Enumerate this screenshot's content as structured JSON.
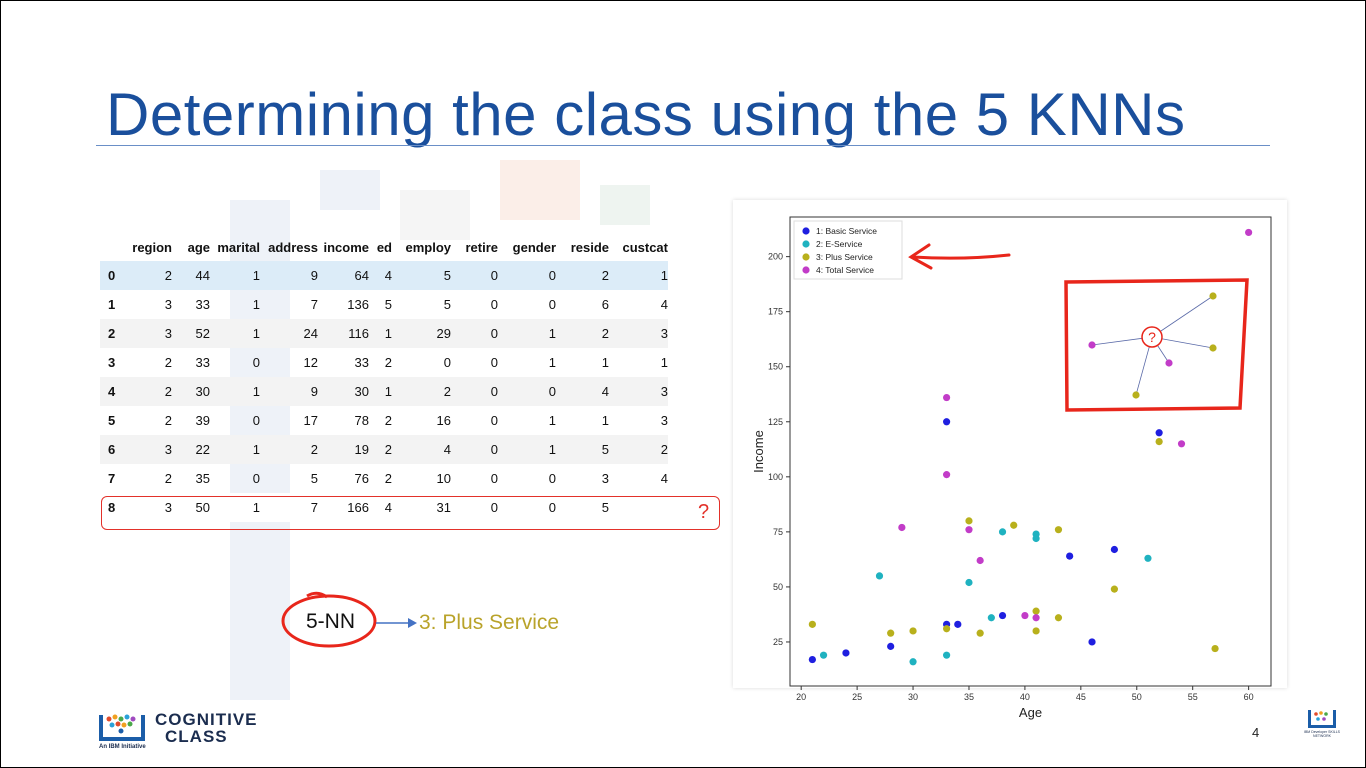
{
  "slide": {
    "title": "Determining the class using the 5 KNNs",
    "page_number": "4"
  },
  "table": {
    "headers": [
      "",
      "region",
      "age",
      "marital",
      "address",
      "income",
      "ed",
      "employ",
      "retire",
      "gender",
      "reside",
      "custcat"
    ],
    "rows": [
      [
        "0",
        "2",
        "44",
        "1",
        "9",
        "64",
        "4",
        "5",
        "0",
        "0",
        "2",
        "1"
      ],
      [
        "1",
        "3",
        "33",
        "1",
        "7",
        "136",
        "5",
        "5",
        "0",
        "0",
        "6",
        "4"
      ],
      [
        "2",
        "3",
        "52",
        "1",
        "24",
        "116",
        "1",
        "29",
        "0",
        "1",
        "2",
        "3"
      ],
      [
        "3",
        "2",
        "33",
        "0",
        "12",
        "33",
        "2",
        "0",
        "0",
        "1",
        "1",
        "1"
      ],
      [
        "4",
        "2",
        "30",
        "1",
        "9",
        "30",
        "1",
        "2",
        "0",
        "0",
        "4",
        "3"
      ],
      [
        "5",
        "2",
        "39",
        "0",
        "17",
        "78",
        "2",
        "16",
        "0",
        "1",
        "1",
        "3"
      ],
      [
        "6",
        "3",
        "22",
        "1",
        "2",
        "19",
        "2",
        "4",
        "0",
        "1",
        "5",
        "2"
      ],
      [
        "7",
        "2",
        "35",
        "0",
        "5",
        "76",
        "2",
        "10",
        "0",
        "0",
        "3",
        "4"
      ],
      [
        "8",
        "3",
        "50",
        "1",
        "7",
        "166",
        "4",
        "31",
        "0",
        "0",
        "5",
        ""
      ]
    ],
    "query_mark": "?"
  },
  "knn": {
    "label": "5-NN",
    "result": "3: Plus Service",
    "query_symbol": "?"
  },
  "logo": {
    "line1": "COGNITIVE",
    "line2": "CLASS",
    "sub": "An IBM Initiative",
    "badge_text": "IBM Developer SKILLS NETWORK"
  },
  "chart_data": {
    "type": "scatter",
    "xlabel": "Age",
    "ylabel": "Income",
    "xlim": [
      19,
      62
    ],
    "ylim": [
      5,
      218
    ],
    "xticks": [
      20,
      25,
      30,
      35,
      40,
      45,
      50,
      55,
      60
    ],
    "yticks": [
      25,
      50,
      75,
      100,
      125,
      150,
      175,
      200
    ],
    "legend_position": "top-left",
    "series": [
      {
        "name": "1: Basic Service",
        "color": "#1f1fe0",
        "points": [
          [
            21,
            17
          ],
          [
            24,
            20
          ],
          [
            28,
            23
          ],
          [
            33,
            33
          ],
          [
            33,
            125
          ],
          [
            34,
            33
          ],
          [
            38,
            37
          ],
          [
            44,
            64
          ],
          [
            46,
            25
          ],
          [
            48,
            67
          ],
          [
            52,
            120
          ]
        ]
      },
      {
        "name": "2: E-Service",
        "color": "#1fb2c0",
        "points": [
          [
            22,
            19
          ],
          [
            27,
            55
          ],
          [
            30,
            16
          ],
          [
            33,
            19
          ],
          [
            35,
            52
          ],
          [
            37,
            36
          ],
          [
            38,
            75
          ],
          [
            41,
            74
          ],
          [
            41,
            72
          ],
          [
            51,
            63
          ]
        ]
      },
      {
        "name": "3: Plus Service",
        "color": "#b8b01c",
        "points": [
          [
            21,
            33
          ],
          [
            28,
            29
          ],
          [
            30,
            30
          ],
          [
            33,
            31
          ],
          [
            35,
            80
          ],
          [
            36,
            29
          ],
          [
            39,
            78
          ],
          [
            41,
            30
          ],
          [
            41,
            39
          ],
          [
            43,
            76
          ],
          [
            43,
            36
          ],
          [
            48,
            49
          ],
          [
            52,
            116
          ],
          [
            57,
            22
          ]
        ]
      },
      {
        "name": "4: Total Service",
        "color": "#c23cc8",
        "points": [
          [
            29,
            77
          ],
          [
            33,
            136
          ],
          [
            33,
            101
          ],
          [
            35,
            76
          ],
          [
            36,
            62
          ],
          [
            40,
            37
          ],
          [
            41,
            36
          ],
          [
            54,
            115
          ],
          [
            60,
            211
          ]
        ]
      }
    ]
  }
}
